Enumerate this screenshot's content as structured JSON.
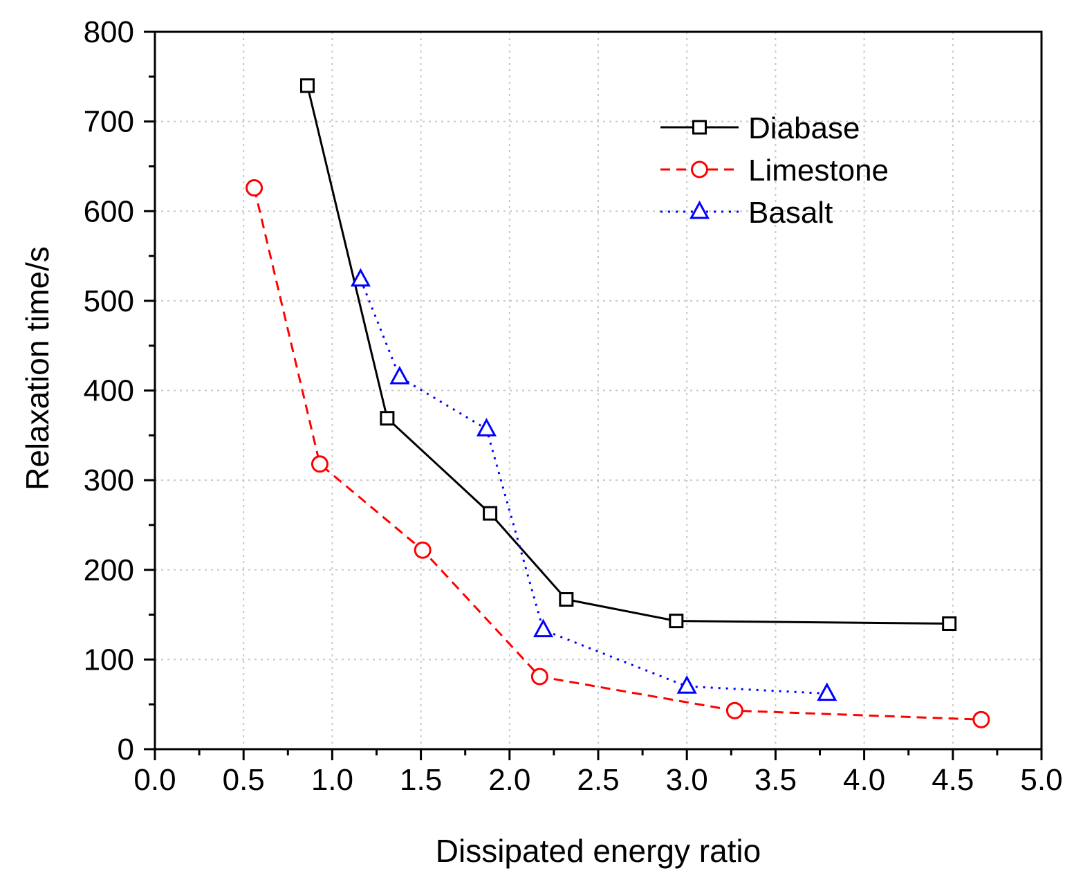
{
  "chart_data": {
    "type": "line",
    "title": "",
    "xlabel": "Dissipated energy ratio",
    "ylabel": "Relaxation time/s",
    "xlim": [
      0.0,
      5.0
    ],
    "ylim": [
      0,
      800
    ],
    "x_ticks": [
      0.0,
      0.5,
      1.0,
      1.5,
      2.0,
      2.5,
      3.0,
      3.5,
      4.0,
      4.5,
      5.0
    ],
    "x_tick_labels": [
      "0.0",
      "0.5",
      "1.0",
      "1.5",
      "2.0",
      "2.5",
      "3.0",
      "3.5",
      "4.0",
      "4.5",
      "5.0"
    ],
    "y_ticks": [
      0,
      100,
      200,
      300,
      400,
      500,
      600,
      700,
      800
    ],
    "y_tick_labels": [
      "0",
      "100",
      "200",
      "300",
      "400",
      "500",
      "600",
      "700",
      "800"
    ],
    "grid": true,
    "legend_position": "top-right",
    "series": [
      {
        "name": "Diabase",
        "color": "#000000",
        "line_style": "solid",
        "marker": "square",
        "x": [
          0.86,
          1.31,
          1.89,
          2.32,
          2.94,
          4.48
        ],
        "y": [
          740,
          369,
          263,
          167,
          143,
          140
        ]
      },
      {
        "name": "Limestone",
        "color": "#ff0000",
        "line_style": "dashed",
        "marker": "circle",
        "x": [
          0.56,
          0.93,
          1.51,
          2.17,
          3.27,
          4.66
        ],
        "y": [
          626,
          318,
          222,
          81,
          43,
          33
        ]
      },
      {
        "name": "Basalt",
        "color": "#0000ff",
        "line_style": "dotted",
        "marker": "triangle",
        "x": [
          1.16,
          1.38,
          1.87,
          2.19,
          3.0,
          3.79
        ],
        "y": [
          524,
          415,
          357,
          133,
          70,
          62
        ]
      }
    ]
  }
}
